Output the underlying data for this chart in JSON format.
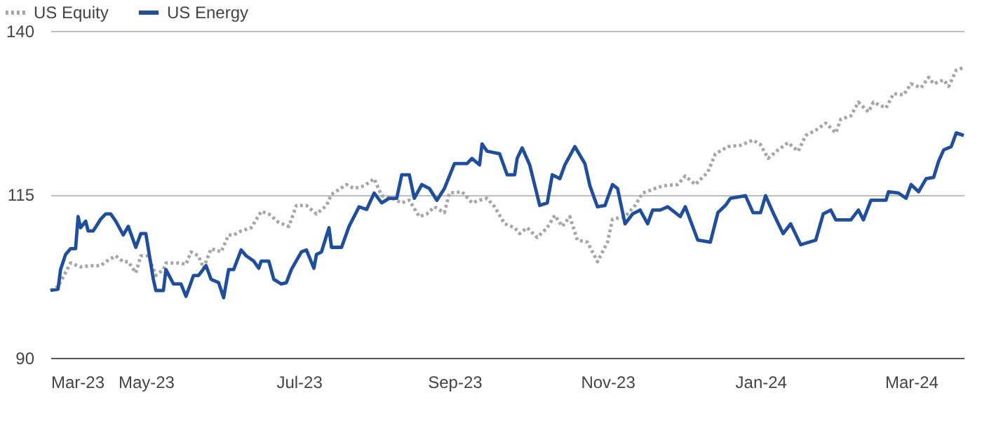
{
  "chart_data": {
    "type": "line",
    "legend": "top left",
    "grid": "y",
    "xlim": [
      "2023-03-24",
      "2024-03-22"
    ],
    "xticks": [
      {
        "value": "2023-03-24",
        "label": "Mar-23"
      },
      {
        "value": "2023-05-01",
        "label": "May-23"
      },
      {
        "value": "2023-07-01",
        "label": "Jul-23"
      },
      {
        "value": "2023-09-01",
        "label": "Sep-23"
      },
      {
        "value": "2023-11-01",
        "label": "Nov-23"
      },
      {
        "value": "2024-01-01",
        "label": "Jan-24"
      },
      {
        "value": "2024-03-01",
        "label": "Mar-24"
      }
    ],
    "ylim": [
      90,
      140
    ],
    "yticks": [
      90,
      115,
      140
    ],
    "series": [
      {
        "name": "US Equity",
        "color": "#a6a6a6",
        "line_style": "dotted",
        "x": [
          "2023-03-24",
          "2023-03-27",
          "2023-04-01",
          "2023-04-05",
          "2023-04-09",
          "2023-04-13",
          "2023-04-15",
          "2023-04-19",
          "2023-04-22",
          "2023-04-24",
          "2023-04-27",
          "2023-04-29",
          "2023-05-02",
          "2023-05-05",
          "2023-05-08",
          "2023-05-09",
          "2023-05-14",
          "2023-05-17",
          "2023-05-19",
          "2023-05-22",
          "2023-05-24",
          "2023-05-27",
          "2023-05-31",
          "2023-06-03",
          "2023-06-05",
          "2023-06-08",
          "2023-06-12",
          "2023-06-16",
          "2023-06-19",
          "2023-06-23",
          "2023-06-27",
          "2023-06-30",
          "2023-07-04",
          "2023-07-08",
          "2023-07-12",
          "2023-07-14",
          "2023-07-20",
          "2023-07-23",
          "2023-07-27",
          "2023-07-31",
          "2023-08-03",
          "2023-08-07",
          "2023-08-11",
          "2023-08-14",
          "2023-08-18",
          "2023-08-21",
          "2023-08-24",
          "2023-08-28",
          "2023-08-30",
          "2023-09-04",
          "2023-09-08",
          "2023-09-11",
          "2023-09-14",
          "2023-09-17",
          "2023-09-21",
          "2023-09-25",
          "2023-09-27",
          "2023-09-30",
          "2023-10-04",
          "2023-10-08",
          "2023-10-11",
          "2023-10-14",
          "2023-10-17",
          "2023-10-20",
          "2023-10-24",
          "2023-10-28",
          "2023-11-01",
          "2023-11-03",
          "2023-11-08",
          "2023-11-12",
          "2023-11-15",
          "2023-11-20",
          "2023-11-23",
          "2023-11-29",
          "2023-12-02",
          "2023-12-06",
          "2023-12-11",
          "2023-12-14",
          "2023-12-19",
          "2023-12-24",
          "2023-12-29",
          "2024-01-01",
          "2024-01-04",
          "2024-01-08",
          "2024-01-12",
          "2024-01-16",
          "2024-01-19",
          "2024-01-23",
          "2024-01-27",
          "2024-01-31",
          "2024-02-02",
          "2024-02-06",
          "2024-02-09",
          "2024-02-13",
          "2024-02-15",
          "2024-02-20",
          "2024-02-23",
          "2024-02-27",
          "2024-03-01",
          "2024-03-05",
          "2024-03-08",
          "2024-03-10",
          "2024-03-14",
          "2024-03-16",
          "2024-03-19",
          "2024-03-22"
        ],
        "values": [
          100.3,
          100.9,
          104.5,
          103.9,
          104.1,
          104.1,
          104.7,
          105.6,
          104.7,
          104.7,
          103.0,
          105.6,
          105.6,
          102.6,
          103.5,
          104.5,
          104.5,
          104.3,
          106.2,
          105.6,
          103.7,
          106.7,
          106.2,
          108.8,
          108.8,
          109.4,
          109.9,
          112.4,
          112.0,
          110.7,
          110.1,
          113.3,
          113.3,
          112.0,
          113.3,
          115.0,
          116.5,
          115.9,
          116.3,
          117.4,
          114.8,
          114.4,
          113.7,
          114.1,
          111.6,
          112.0,
          113.1,
          112.2,
          115.2,
          115.4,
          113.7,
          114.1,
          114.4,
          113.1,
          110.5,
          109.9,
          109.0,
          109.9,
          108.4,
          109.9,
          111.8,
          110.1,
          111.6,
          108.0,
          107.7,
          104.7,
          107.7,
          111.2,
          111.6,
          113.3,
          115.2,
          115.9,
          116.3,
          116.5,
          117.8,
          116.5,
          118.4,
          121.2,
          122.3,
          122.5,
          123.3,
          122.6,
          120.5,
          121.8,
          122.9,
          121.6,
          124.0,
          124.8,
          125.9,
          124.4,
          126.5,
          127.0,
          129.1,
          127.6,
          129.1,
          128.2,
          130.4,
          130.2,
          131.9,
          131.3,
          132.9,
          131.9,
          132.5,
          131.5,
          134.0,
          134.4
        ]
      },
      {
        "name": "US Energy",
        "color": "#1f4e9c",
        "line_style": "solid",
        "x": [
          "2023-03-24",
          "2023-03-27",
          "2023-03-28",
          "2023-03-30",
          "2023-04-01",
          "2023-04-03",
          "2023-04-04",
          "2023-04-05",
          "2023-04-07",
          "2023-04-08",
          "2023-04-10",
          "2023-04-13",
          "2023-04-15",
          "2023-04-17",
          "2023-04-19",
          "2023-04-22",
          "2023-04-24",
          "2023-04-27",
          "2023-04-29",
          "2023-05-01",
          "2023-05-04",
          "2023-05-05",
          "2023-05-08",
          "2023-05-09",
          "2023-05-12",
          "2023-05-15",
          "2023-05-17",
          "2023-05-20",
          "2023-05-22",
          "2023-05-25",
          "2023-05-27",
          "2023-05-30",
          "2023-06-01",
          "2023-06-03",
          "2023-06-05",
          "2023-06-08",
          "2023-06-10",
          "2023-06-13",
          "2023-06-15",
          "2023-06-16",
          "2023-06-19",
          "2023-06-21",
          "2023-06-24",
          "2023-06-26",
          "2023-06-28",
          "2023-07-02",
          "2023-07-04",
          "2023-07-07",
          "2023-07-08",
          "2023-07-10",
          "2023-07-13",
          "2023-07-14",
          "2023-07-16",
          "2023-07-18",
          "2023-07-21",
          "2023-07-25",
          "2023-07-28",
          "2023-07-31",
          "2023-08-03",
          "2023-08-06",
          "2023-08-09",
          "2023-08-11",
          "2023-08-14",
          "2023-08-16",
          "2023-08-19",
          "2023-08-22",
          "2023-08-25",
          "2023-08-28",
          "2023-09-01",
          "2023-09-06",
          "2023-09-08",
          "2023-09-11",
          "2023-09-12",
          "2023-09-14",
          "2023-09-19",
          "2023-09-22",
          "2023-09-25",
          "2023-09-26",
          "2023-09-28",
          "2023-10-01",
          "2023-10-05",
          "2023-10-08",
          "2023-10-10",
          "2023-10-13",
          "2023-10-15",
          "2023-10-19",
          "2023-10-23",
          "2023-10-25",
          "2023-10-28",
          "2023-10-31",
          "2023-11-03",
          "2023-11-05",
          "2023-11-08",
          "2023-11-11",
          "2023-11-14",
          "2023-11-17",
          "2023-11-19",
          "2023-11-22",
          "2023-11-25",
          "2023-11-30",
          "2023-12-02",
          "2023-12-07",
          "2023-12-12",
          "2023-12-15",
          "2023-12-18",
          "2023-12-20",
          "2023-12-26",
          "2023-12-29",
          "2024-01-01",
          "2024-01-03",
          "2024-01-06",
          "2024-01-10",
          "2024-01-13",
          "2024-01-17",
          "2024-01-23",
          "2024-01-26",
          "2024-01-29",
          "2024-01-31",
          "2024-02-06",
          "2024-02-09",
          "2024-02-11",
          "2024-02-14",
          "2024-02-20",
          "2024-02-21",
          "2024-02-25",
          "2024-02-28",
          "2024-03-01",
          "2024-03-04",
          "2024-03-07",
          "2024-03-10",
          "2024-03-12",
          "2024-03-14",
          "2024-03-17",
          "2024-03-19",
          "2024-03-22"
        ],
        "values": [
          100.3,
          100.5,
          103.5,
          105.8,
          106.7,
          106.7,
          111.6,
          109.9,
          110.9,
          109.4,
          109.4,
          111.2,
          112.0,
          112.0,
          110.9,
          108.8,
          110.1,
          106.9,
          109.0,
          109.0,
          102.0,
          100.3,
          100.3,
          103.5,
          101.3,
          101.3,
          99.4,
          102.6,
          102.6,
          104.1,
          102.0,
          101.5,
          99.2,
          103.5,
          103.5,
          106.5,
          105.6,
          104.8,
          103.7,
          104.8,
          104.8,
          102.0,
          101.3,
          101.5,
          103.5,
          106.2,
          106.5,
          103.7,
          105.8,
          106.2,
          109.9,
          106.9,
          106.9,
          106.9,
          110.1,
          113.1,
          112.7,
          115.2,
          113.7,
          114.4,
          114.4,
          118.0,
          118.0,
          114.4,
          116.5,
          115.9,
          114.1,
          115.9,
          119.7,
          119.7,
          120.5,
          119.5,
          122.7,
          121.6,
          121.2,
          118.0,
          118.0,
          120.5,
          122.1,
          119.5,
          113.3,
          113.7,
          118.0,
          117.4,
          119.5,
          122.3,
          119.7,
          116.3,
          113.1,
          113.3,
          116.5,
          115.9,
          110.5,
          112.0,
          112.6,
          110.5,
          112.6,
          112.6,
          113.1,
          111.6,
          113.1,
          108.0,
          107.7,
          112.2,
          113.3,
          114.4,
          114.8,
          112.2,
          112.2,
          114.8,
          112.2,
          109.0,
          110.5,
          107.3,
          108.0,
          112.0,
          112.6,
          111.1,
          111.1,
          112.6,
          111.1,
          114.1,
          114.1,
          115.4,
          115.2,
          114.4,
          116.5,
          115.4,
          117.4,
          117.6,
          120.1,
          121.8,
          122.3,
          124.4,
          124.0
        ]
      }
    ]
  }
}
